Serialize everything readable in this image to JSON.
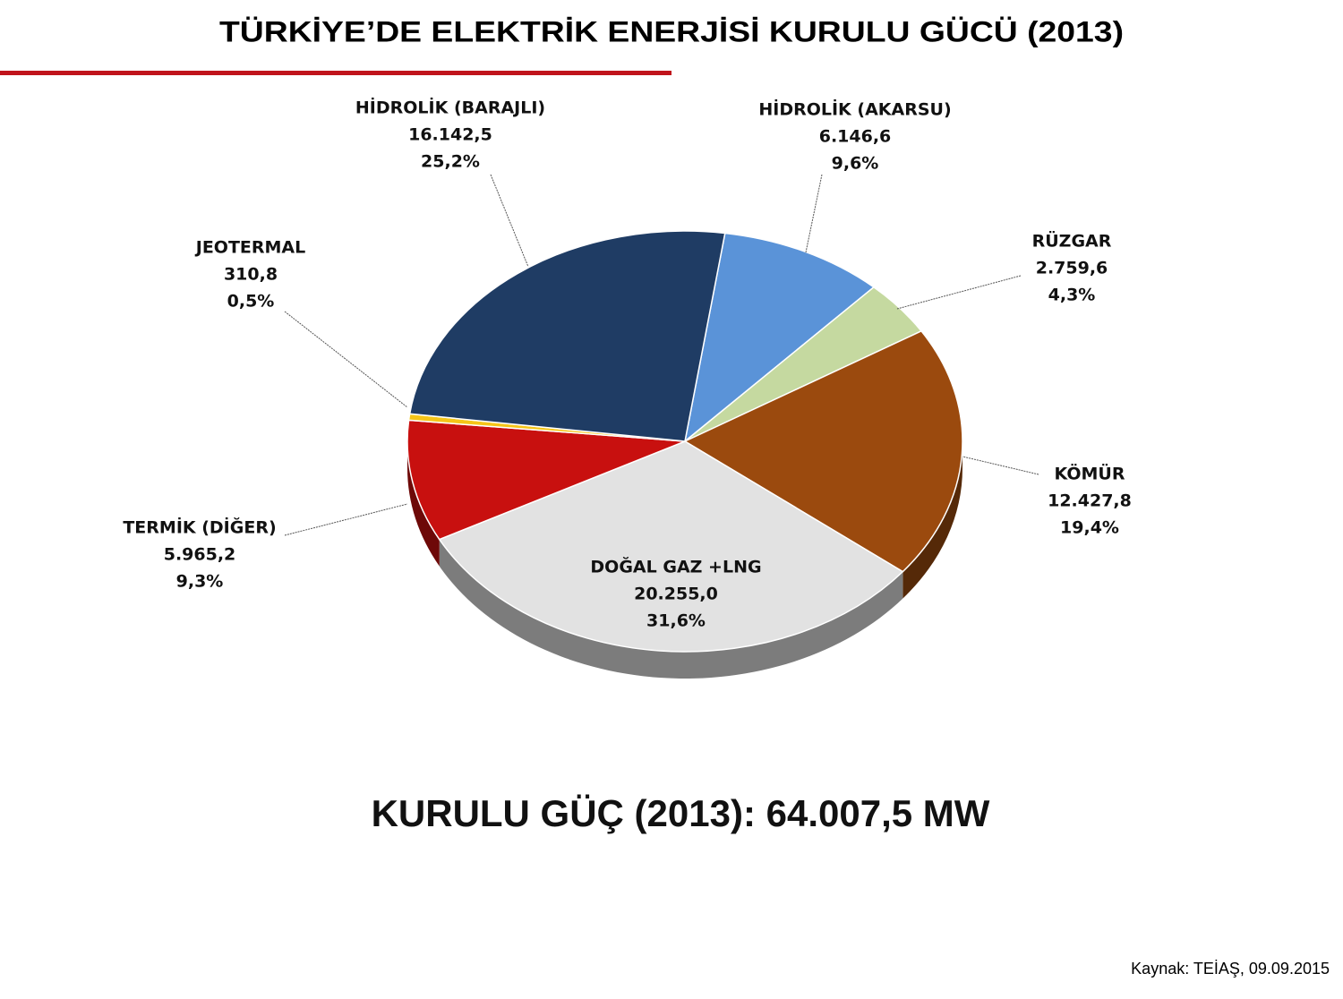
{
  "chart_data": {
    "type": "pie",
    "title": "TÜRKİYE’DE ELEKTRİK ENERJİSİ KURULU GÜCÜ (2013)",
    "categories": [
      "HİDROLİK (AKARSU)",
      "RÜZGAR",
      "KÖMÜR",
      "DOĞAL GAZ +LNG",
      "TERMİK (DİĞER)",
      "JEOTERMAL",
      "HİDROLİK (BARAJLI)"
    ],
    "values": [
      6146.6,
      2759.6,
      12427.8,
      20255.0,
      5965.2,
      310.8,
      16142.5
    ],
    "value_labels": [
      "6.146,6",
      "2.759,6",
      "12.427,8",
      "20.255,0",
      "5.965,2",
      "310,8",
      "16.142,5"
    ],
    "percents": [
      9.6,
      4.3,
      19.4,
      31.6,
      9.3,
      0.5,
      25.2
    ],
    "percent_labels": [
      "9,6%",
      "4,3%",
      "19,4%",
      "31,6%",
      "9,3%",
      "0,5%",
      "25,2%"
    ],
    "colors": [
      "#5a93d8",
      "#c5d9a0",
      "#9b4a0e",
      "#e2e2e2",
      "#c8100f",
      "#f5c518",
      "#1f3c64"
    ],
    "total_label": "KURULU GÜÇ (2013): 64.007,5 MW",
    "source": "Kaynak: TEİAŞ, 09.09.2015"
  }
}
